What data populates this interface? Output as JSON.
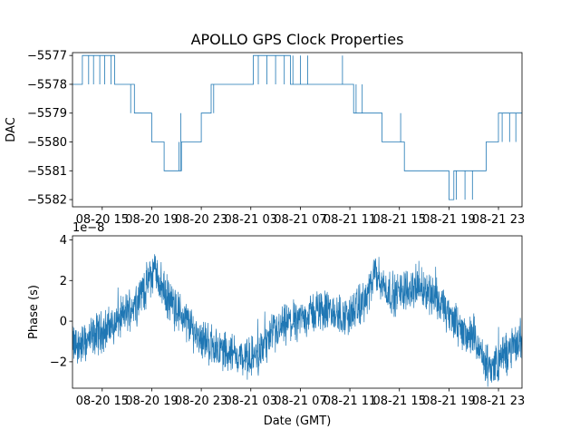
{
  "figure": {
    "title": "APOLLO GPS Clock Properties"
  },
  "colors": {
    "line": "#1f77b4",
    "axis": "#000000",
    "background": "#ffffff"
  },
  "chart_data": [
    {
      "id": "dac",
      "type": "line",
      "title": "APOLLO GPS Clock Properties",
      "xlabel": "",
      "ylabel": "DAC",
      "xlim": [
        12.6,
        48.9
      ],
      "ylim": [
        -5582.25,
        -5576.9
      ],
      "yticks": [
        -5577,
        -5578,
        -5579,
        -5580,
        -5581,
        -5582
      ],
      "ytick_labels": [
        "−5577",
        "−5578",
        "−5579",
        "−5580",
        "−5581",
        "−5582"
      ],
      "xticks": [
        15,
        19,
        23,
        27,
        31,
        35,
        39,
        43,
        47
      ],
      "xtick_labels": [
        "08-20 15",
        "08-20 19",
        "08-20 23",
        "08-21 03",
        "08-21 07",
        "08-21 11",
        "08-21 15",
        "08-21 19",
        "08-21 23"
      ],
      "step_series": [
        [
          12.6,
          -5578
        ],
        [
          13.4,
          -5577
        ],
        [
          16.0,
          -5578
        ],
        [
          17.6,
          -5579
        ],
        [
          19.0,
          -5580
        ],
        [
          20.0,
          -5581
        ],
        [
          21.4,
          -5580
        ],
        [
          23.0,
          -5579
        ],
        [
          23.8,
          -5578
        ],
        [
          27.2,
          -5577
        ],
        [
          30.2,
          -5578
        ],
        [
          35.3,
          -5579
        ],
        [
          37.6,
          -5580
        ],
        [
          39.4,
          -5581
        ],
        [
          43.0,
          -5582
        ],
        [
          43.4,
          -5581
        ],
        [
          46.0,
          -5580
        ],
        [
          47.0,
          -5579
        ],
        [
          48.9,
          -5579
        ]
      ],
      "spike_series": [
        [
          13.6,
          -5577
        ],
        [
          13.9,
          -5578
        ],
        [
          14.1,
          -5577
        ],
        [
          14.3,
          -5578
        ],
        [
          14.5,
          -5577
        ],
        [
          14.8,
          -5578
        ],
        [
          15.0,
          -5577
        ],
        [
          15.2,
          -5578
        ],
        [
          15.4,
          -5577
        ],
        [
          15.7,
          -5578
        ],
        [
          17.1,
          -5578
        ],
        [
          17.3,
          -5579
        ],
        [
          17.4,
          -5578
        ],
        [
          17.6,
          -5579
        ],
        [
          21.2,
          -5580
        ],
        [
          21.35,
          -5579
        ],
        [
          23.9,
          -5578
        ],
        [
          24.0,
          -5579
        ],
        [
          24.2,
          -5578
        ],
        [
          27.6,
          -5578
        ],
        [
          27.9,
          -5577
        ],
        [
          28.3,
          -5578
        ],
        [
          28.6,
          -5577
        ],
        [
          29.0,
          -5578
        ],
        [
          29.4,
          -5577
        ],
        [
          29.7,
          -5578
        ],
        [
          30.4,
          -5577
        ],
        [
          30.7,
          -5578
        ],
        [
          31.0,
          -5577
        ],
        [
          31.3,
          -5578
        ],
        [
          31.6,
          -5577
        ],
        [
          31.9,
          -5578
        ],
        [
          34.4,
          -5577
        ],
        [
          34.6,
          -5578
        ],
        [
          35.5,
          -5578
        ],
        [
          35.7,
          -5579
        ],
        [
          36.0,
          -5578
        ],
        [
          36.3,
          -5579
        ],
        [
          39.1,
          -5579
        ],
        [
          39.3,
          -5580
        ],
        [
          43.6,
          -5582
        ],
        [
          43.8,
          -5581
        ],
        [
          44.3,
          -5582
        ],
        [
          44.6,
          -5581
        ],
        [
          44.9,
          -5582
        ],
        [
          45.2,
          -5581
        ],
        [
          47.3,
          -5580
        ],
        [
          47.5,
          -5579
        ],
        [
          47.9,
          -5580
        ],
        [
          48.1,
          -5579
        ],
        [
          48.4,
          -5580
        ],
        [
          48.6,
          -5579
        ]
      ]
    },
    {
      "id": "phase",
      "type": "line",
      "title": "",
      "xlabel": "Date (GMT)",
      "ylabel": "Phase (s)",
      "offset_label": "1e−8",
      "xlim": [
        12.6,
        48.9
      ],
      "ylim": [
        -3.3,
        4.2
      ],
      "yticks": [
        4,
        2,
        0,
        -2
      ],
      "ytick_labels": [
        "4",
        "2",
        "0",
        "−2"
      ],
      "xticks": [
        15,
        19,
        23,
        27,
        31,
        35,
        39,
        43,
        47
      ],
      "xtick_labels": [
        "08-20 15",
        "08-20 19",
        "08-20 23",
        "08-21 03",
        "08-21 07",
        "08-21 11",
        "08-21 15",
        "08-21 19",
        "08-21 23"
      ],
      "trend": [
        [
          12.6,
          -1.2
        ],
        [
          13.6,
          -1.1
        ],
        [
          14.6,
          -0.6
        ],
        [
          15.6,
          -0.3
        ],
        [
          16.6,
          0.2
        ],
        [
          17.6,
          0.9
        ],
        [
          18.6,
          1.8
        ],
        [
          19.3,
          2.6
        ],
        [
          19.6,
          2.0
        ],
        [
          20.4,
          1.0
        ],
        [
          21.6,
          0.2
        ],
        [
          22.6,
          -0.6
        ],
        [
          23.6,
          -1.1
        ],
        [
          24.6,
          -1.4
        ],
        [
          25.6,
          -1.6
        ],
        [
          26.6,
          -1.9
        ],
        [
          27.6,
          -1.6
        ],
        [
          28.6,
          -0.8
        ],
        [
          29.6,
          -0.3
        ],
        [
          30.6,
          0.0
        ],
        [
          31.6,
          0.3
        ],
        [
          32.6,
          0.6
        ],
        [
          33.6,
          0.4
        ],
        [
          34.6,
          0.2
        ],
        [
          35.6,
          0.6
        ],
        [
          36.4,
          1.2
        ],
        [
          37.1,
          2.4
        ],
        [
          37.6,
          1.8
        ],
        [
          38.6,
          1.3
        ],
        [
          39.6,
          1.6
        ],
        [
          40.6,
          1.7
        ],
        [
          41.6,
          1.4
        ],
        [
          42.6,
          0.6
        ],
        [
          43.6,
          -0.2
        ],
        [
          44.6,
          -0.7
        ],
        [
          45.4,
          -1.3
        ],
        [
          46.0,
          -2.3
        ],
        [
          46.6,
          -2.2
        ],
        [
          47.6,
          -1.6
        ],
        [
          48.4,
          -1.2
        ],
        [
          48.9,
          -0.8
        ]
      ]
    }
  ]
}
